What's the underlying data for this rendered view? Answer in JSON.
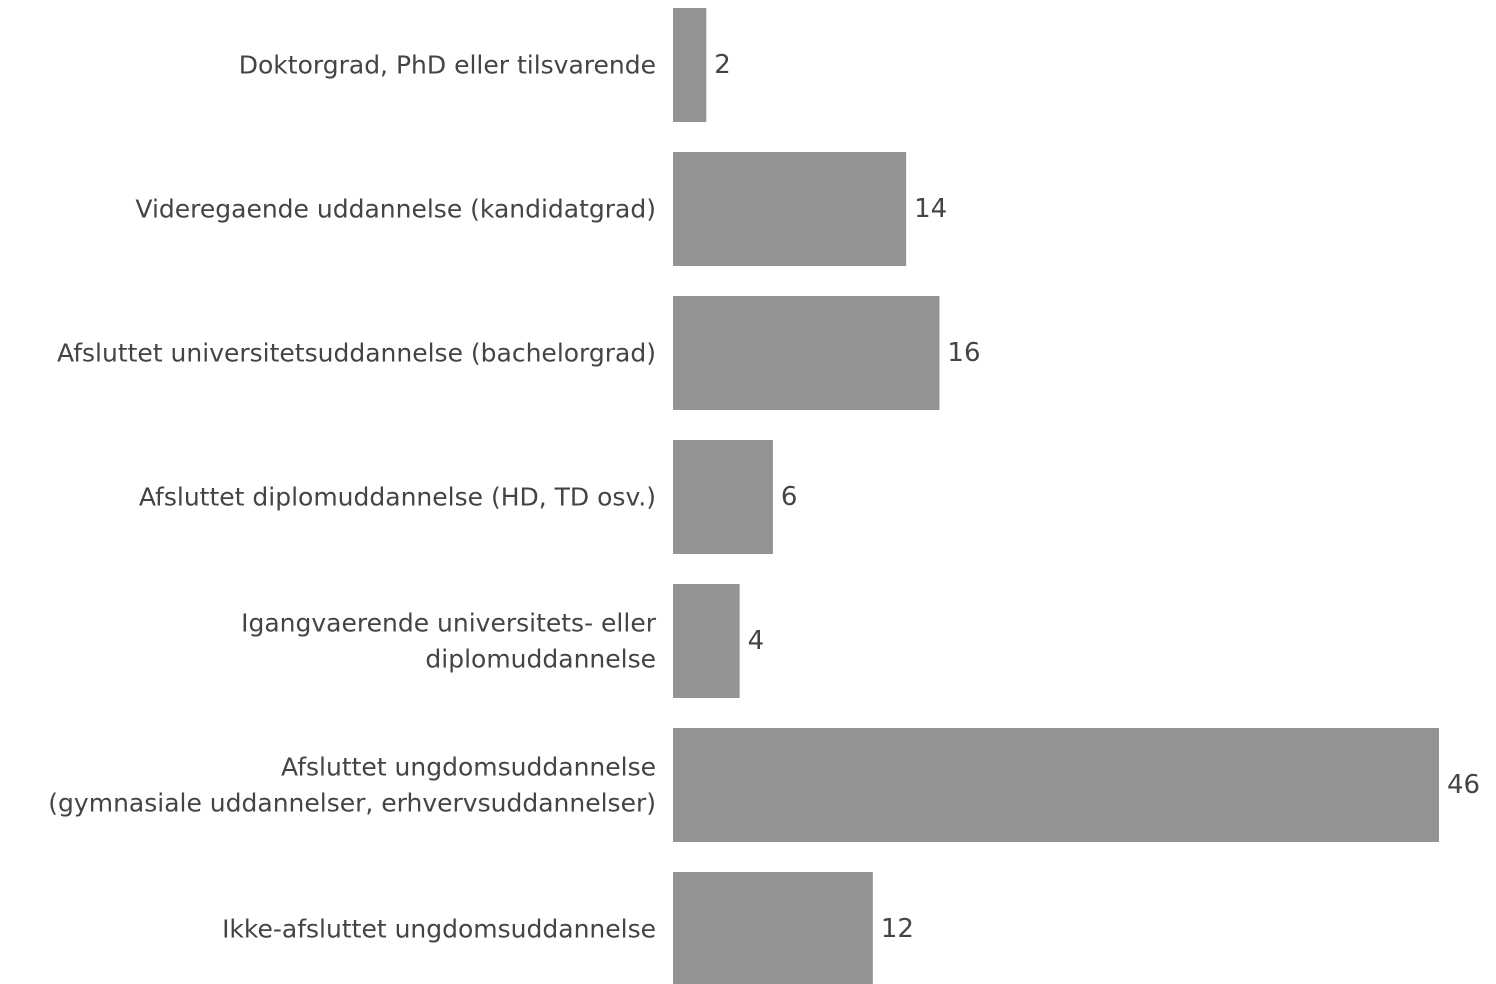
{
  "chart_data": {
    "type": "bar",
    "orientation": "horizontal",
    "categories": [
      [
        "Doktorgrad, PhD eller tilsvarende"
      ],
      [
        "Videregaende uddannelse (kandidatgrad)"
      ],
      [
        "Afsluttet universitetsuddannelse (bachelorgrad)"
      ],
      [
        "Afsluttet diplomuddannelse (HD, TD osv.)"
      ],
      [
        "Igangvaerende universitets- eller",
        "diplomuddannelse"
      ],
      [
        "Afsluttet ungdomsuddannelse",
        "(gymnasiale uddannelser, erhvervsuddannelser)"
      ],
      [
        "Ikke-afsluttet ungdomsuddannelse"
      ]
    ],
    "values": [
      2,
      14,
      16,
      6,
      4,
      46,
      12
    ],
    "data_labels": [
      "2",
      "14",
      "16",
      "6",
      "4",
      "46",
      "12"
    ],
    "xlim": [
      0,
      46
    ],
    "bar_color": "#939393",
    "text_color": "#444444",
    "grid": false,
    "legend": "none"
  }
}
